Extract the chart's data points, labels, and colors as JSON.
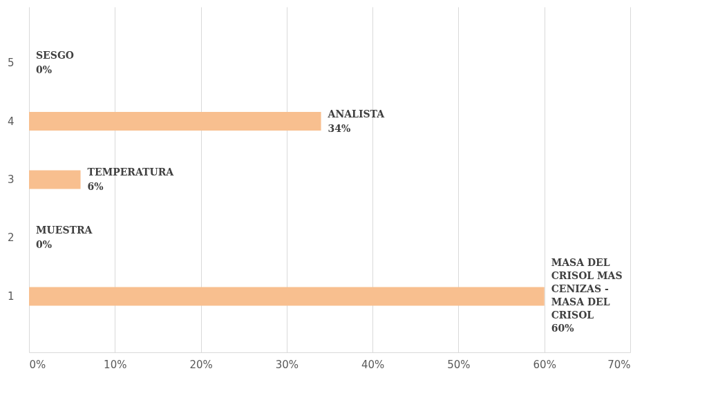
{
  "chart_data": {
    "type": "bar",
    "orientation": "horizontal",
    "categories": [
      "5",
      "4",
      "3",
      "2",
      "1"
    ],
    "values": [
      0,
      34,
      6,
      0,
      60
    ],
    "value_labels": [
      "SESGO\n0%",
      "ANALISTA\n34%",
      "TEMPERATURA\n6%",
      "MUESTRA\n0%",
      "MASA DEL\nCRISOL MAS\nCENIZAS -\nMASA DEL\nCRISOL\n60%"
    ],
    "color": "#f8bf8f",
    "xlim": [
      0,
      70
    ],
    "xticks": [
      {
        "value": 0,
        "label": "0%"
      },
      {
        "value": 10,
        "label": "10%"
      },
      {
        "value": 20,
        "label": "20%"
      },
      {
        "value": 30,
        "label": "30%"
      },
      {
        "value": 40,
        "label": "40%"
      },
      {
        "value": 50,
        "label": "50%"
      },
      {
        "value": 60,
        "label": "60%"
      },
      {
        "value": 70,
        "label": "70%"
      }
    ],
    "grid": "x"
  }
}
